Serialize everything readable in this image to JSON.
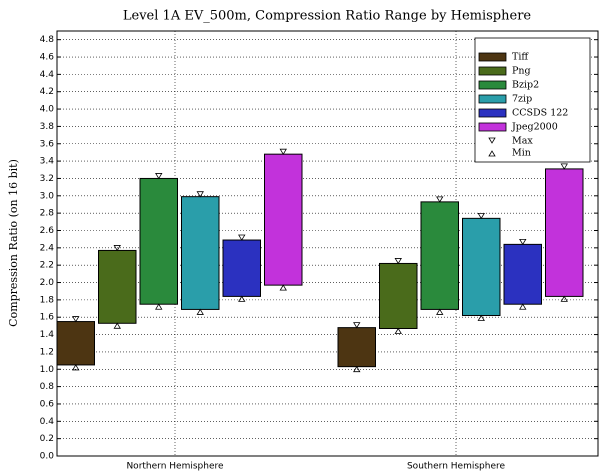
{
  "chart_data": {
    "type": "range_bar",
    "title": "Level 1A EV_500m, Compression Ratio Range by Hemisphere",
    "y_label": "Compression Ratio (on 16 bit)",
    "categories": [
      "Northern Hemisphere",
      "Southern Hemisphere"
    ],
    "series": [
      {
        "name": "Tiff",
        "color": "#4d3512",
        "low": [
          1.05,
          1.03
        ],
        "high": [
          1.55,
          1.48
        ]
      },
      {
        "name": "Png",
        "color": "#4a6b1b",
        "low": [
          1.53,
          1.47
        ],
        "high": [
          2.37,
          2.22
        ]
      },
      {
        "name": "Bzip2",
        "color": "#2a8a3c",
        "low": [
          1.75,
          1.69
        ],
        "high": [
          3.2,
          2.93
        ]
      },
      {
        "name": "7zip",
        "color": "#2a9eaa",
        "low": [
          1.69,
          1.62
        ],
        "high": [
          2.99,
          2.74
        ]
      },
      {
        "name": "CCSDS 122",
        "color": "#2b31c0",
        "low": [
          1.84,
          1.75
        ],
        "high": [
          2.49,
          2.44
        ]
      },
      {
        "name": "Jpeg2000",
        "color": "#c232db",
        "low": [
          1.97,
          1.84
        ],
        "high": [
          3.48,
          3.31
        ]
      }
    ],
    "max_marker": "Max",
    "min_marker": "Min",
    "ylim": [
      0,
      4.9
    ],
    "yticks": [
      {
        "value": 0,
        "label": "0.0"
      },
      0.2,
      0.4,
      0.6,
      0.8,
      {
        "value": 1,
        "label": "1.0"
      },
      1.2,
      1.4,
      1.6,
      1.8,
      {
        "value": 2,
        "label": "2.0"
      },
      2.2,
      2.4,
      2.6,
      2.8,
      {
        "value": 3,
        "label": "3.0"
      },
      3.2,
      3.4,
      3.6,
      3.8,
      {
        "value": 4,
        "label": "4.0"
      },
      4.2,
      4.4,
      4.6,
      4.8
    ],
    "grid": true,
    "legend": "upper right"
  }
}
